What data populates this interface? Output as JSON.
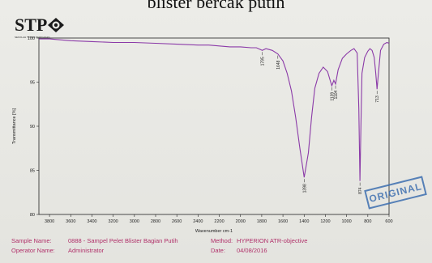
{
  "header": {
    "title": "blister bercak putih"
  },
  "logo": {
    "text": "STP",
    "subtext": "SEKOLAH TINGGI PERIKANAN"
  },
  "stamp": {
    "text": "ORIGINAL"
  },
  "meta": {
    "sample_name_label": "Sample Name:",
    "sample_name_value": "0888 - Sampel Pelet Blister Bagian Putih",
    "operator_label": "Operator Name:",
    "operator_value": "Administrator",
    "method_label": "Method:",
    "method_value": "HYPERION ATR-objective",
    "date_label": "Date:",
    "date_value": "04/08/2016"
  },
  "colors": {
    "spectrum": "#8b3aa8",
    "meta_text": "#b0306a",
    "stamp": "#3d6fb0"
  },
  "chart_data": {
    "type": "line",
    "title": "",
    "xlabel": "Wavenumber cm-1",
    "ylabel": "Transmittance [%]",
    "xlim": [
      3900,
      600
    ],
    "ylim": [
      80,
      100
    ],
    "x_reversed": true,
    "x_ticks": [
      3800,
      3600,
      3400,
      3200,
      3000,
      2800,
      2600,
      2400,
      2200,
      2000,
      1800,
      1600,
      1400,
      1200,
      1000,
      800,
      600
    ],
    "y_ticks": [
      80,
      85,
      90,
      95,
      100
    ],
    "grid": false,
    "series": [
      {
        "x": [
          3900,
          3800,
          3600,
          3400,
          3200,
          3000,
          2800,
          2600,
          2400,
          2300,
          2200,
          2100,
          2000,
          1900,
          1850,
          1795,
          1760,
          1700,
          1648,
          1600,
          1560,
          1520,
          1480,
          1440,
          1400,
          1360,
          1330,
          1300,
          1260,
          1220,
          1180,
          1150,
          1139,
          1120,
          1104,
          1080,
          1040,
          1000,
          960,
          930,
          900,
          885,
          874,
          865,
          855,
          830,
          800,
          780,
          760,
          740,
          725,
          713,
          700,
          680,
          650,
          620,
          600
        ],
        "values": [
          99.9,
          99.9,
          99.7,
          99.6,
          99.5,
          99.5,
          99.4,
          99.3,
          99.2,
          99.2,
          99.1,
          99.0,
          99.0,
          98.9,
          98.9,
          98.6,
          98.8,
          98.6,
          98.2,
          97.4,
          96.0,
          94.0,
          91.0,
          87.5,
          84.2,
          87.0,
          91.0,
          94.3,
          96.0,
          96.7,
          96.2,
          95.0,
          94.6,
          95.2,
          94.8,
          96.4,
          97.7,
          98.2,
          98.6,
          98.8,
          98.3,
          92.0,
          83.8,
          90.0,
          96.0,
          97.8,
          98.5,
          98.8,
          98.6,
          97.8,
          96.0,
          94.2,
          96.0,
          98.6,
          99.3,
          99.5,
          99.4
        ]
      }
    ],
    "peak_labels": [
      {
        "x": 1795,
        "y": 98.6,
        "label": "1795"
      },
      {
        "x": 1648,
        "y": 98.2,
        "label": "1648"
      },
      {
        "x": 1398,
        "y": 84.2,
        "label": "1398"
      },
      {
        "x": 1139,
        "y": 94.6,
        "label": "1139"
      },
      {
        "x": 1104,
        "y": 94.8,
        "label": "1104"
      },
      {
        "x": 874,
        "y": 83.8,
        "label": "874"
      },
      {
        "x": 713,
        "y": 94.2,
        "label": "713"
      }
    ]
  }
}
